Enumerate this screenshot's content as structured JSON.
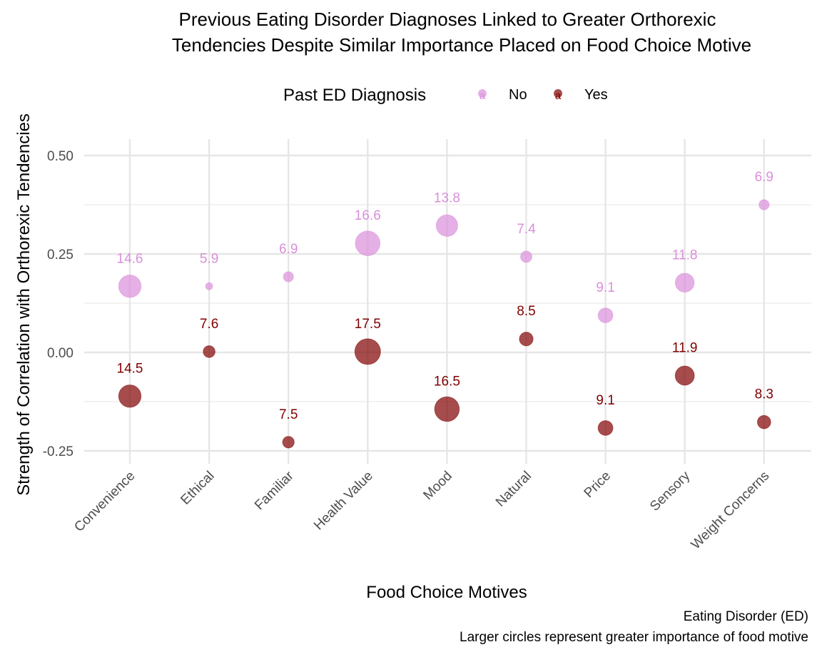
{
  "chart_data": {
    "type": "scatter",
    "title_lines": [
      "Previous Eating Disorder Diagnoses Linked to Greater Orthorexic",
      "Tendencies Despite Similar Importance Placed on Food Choice Motive"
    ],
    "xlabel": "Food Choice Motives",
    "ylabel": "Strength of Correlation with Orthorexic Tendencies",
    "categories": [
      "Convenience",
      "Ethical",
      "Familiar",
      "Health Value",
      "Mood",
      "Natural",
      "Price",
      "Sensory",
      "Weight Concerns"
    ],
    "ylim": [
      -0.3,
      0.55
    ],
    "yticks": [
      0.5,
      0.25,
      0.0,
      -0.25
    ],
    "ytick_labels": [
      "0.50",
      "0.25",
      "0.00",
      "-0.25"
    ],
    "grid": true,
    "legend": {
      "title": "Past ED Diagnosis",
      "position": "top",
      "glyph_letter": "a",
      "entries": [
        "No",
        "Yes"
      ]
    },
    "series": [
      {
        "name": "No",
        "color": "#DA8FDA",
        "y": [
          0.168,
          0.168,
          0.192,
          0.277,
          0.322,
          0.243,
          0.094,
          0.177,
          0.375
        ],
        "size": [
          14.6,
          5.9,
          6.9,
          16.6,
          13.8,
          7.4,
          9.1,
          11.8,
          6.9
        ],
        "labels": [
          "14.6",
          "5.9",
          "6.9",
          "16.6",
          "13.8",
          "7.4",
          "9.1",
          "11.8",
          "6.9"
        ]
      },
      {
        "name": "Yes",
        "color": "#800000",
        "y": [
          -0.111,
          0.002,
          -0.228,
          0.002,
          -0.144,
          0.034,
          -0.192,
          -0.059,
          -0.177
        ],
        "size": [
          14.5,
          7.6,
          7.5,
          17.5,
          16.5,
          8.5,
          9.1,
          11.9,
          8.3
        ],
        "labels": [
          "14.5",
          "7.6",
          "7.5",
          "17.5",
          "16.5",
          "8.5",
          "9.1",
          "11.9",
          "8.3"
        ]
      }
    ],
    "caption_lines": [
      "Eating Disorder (ED)",
      "Larger circles represent greater importance of food motive"
    ]
  }
}
